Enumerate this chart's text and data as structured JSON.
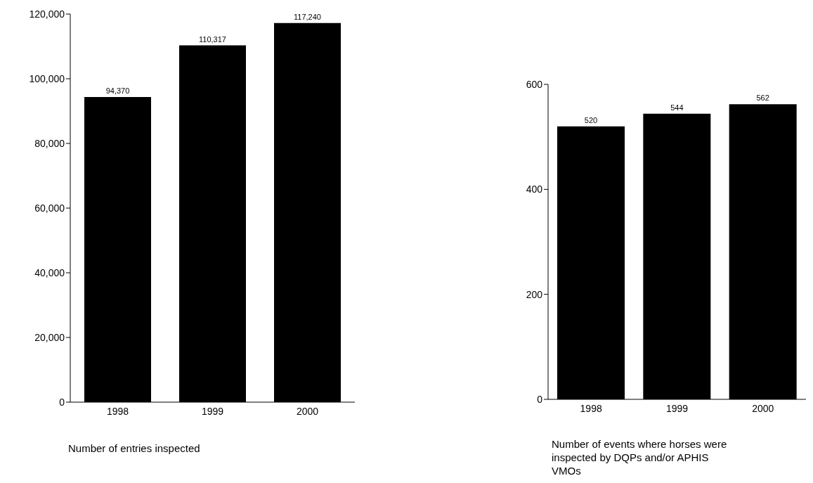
{
  "chart_data": [
    {
      "type": "bar",
      "categories": [
        "1998",
        "1999",
        "2000"
      ],
      "values": [
        94370,
        110317,
        117240
      ],
      "value_labels": [
        "94,370",
        "110,317",
        "117,240"
      ],
      "color": "#000000",
      "ylim": [
        0,
        120000
      ],
      "yticks": [
        0,
        {
          "value": 20000,
          "label": "20,000"
        },
        {
          "value": 40000,
          "label": "40,000"
        },
        {
          "value": 60000,
          "label": "60,000"
        },
        {
          "value": 80000,
          "label": "80,000"
        },
        {
          "value": 100000,
          "label": "100,000"
        },
        {
          "value": 120000,
          "label": "120,000"
        }
      ],
      "xlabel": "Number of entries inspected"
    },
    {
      "type": "bar",
      "categories": [
        "1998",
        "1999",
        "2000"
      ],
      "values": [
        520,
        544,
        562
      ],
      "color": "#000000",
      "ylim": [
        0,
        600
      ],
      "yticks": [
        0,
        200,
        400,
        600
      ],
      "data_labels": true,
      "xlabel": "Number of events where horses were inspected by DQPs and/or APHIS VMOs"
    }
  ]
}
